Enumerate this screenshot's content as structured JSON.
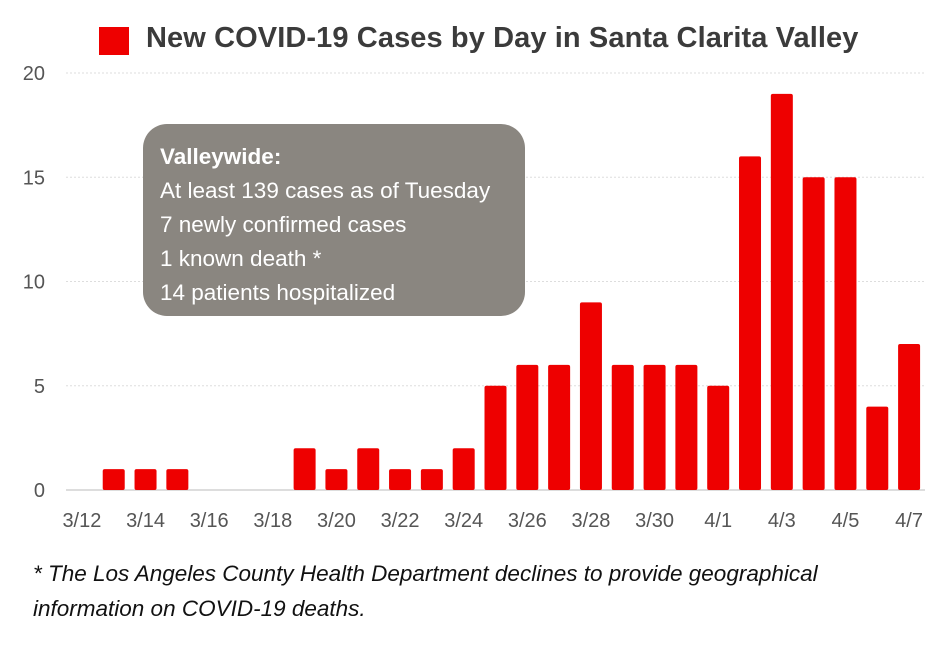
{
  "chart_data": {
    "type": "bar",
    "legend": [
      "New COVID-19 Cases by Day in Santa Clarita Valley"
    ],
    "categories": [
      "3/12",
      "3/13",
      "3/14",
      "3/15",
      "3/16",
      "3/17",
      "3/18",
      "3/19",
      "3/20",
      "3/21",
      "3/22",
      "3/23",
      "3/24",
      "3/25",
      "3/26",
      "3/27",
      "3/28",
      "3/29",
      "3/30",
      "3/31",
      "4/1",
      "4/2",
      "4/3",
      "4/4",
      "4/5",
      "4/6",
      "4/7"
    ],
    "tick_labels": [
      "3/12",
      "3/14",
      "3/16",
      "3/18",
      "3/20",
      "3/22",
      "3/24",
      "3/26",
      "3/28",
      "3/30",
      "4/1",
      "4/3",
      "4/5",
      "4/7"
    ],
    "values": [
      0,
      1,
      1,
      1,
      0,
      0,
      0,
      2,
      1,
      2,
      1,
      1,
      2,
      5,
      6,
      6,
      9,
      6,
      6,
      6,
      5,
      16,
      19,
      15,
      15,
      4,
      7
    ],
    "ylim": [
      0,
      20
    ],
    "yticks": [
      0,
      5,
      10,
      15,
      20
    ],
    "grid": true,
    "legend_position": "top"
  },
  "colors": {
    "bar": "#ee0000",
    "grid": "#dddddd",
    "infobox": "#8a8680"
  },
  "infobox": {
    "heading": "Valleywide:",
    "lines": [
      "At least 139 cases as of Tuesday",
      "7 newly confirmed cases",
      "1 known death *",
      "14 patients hospitalized"
    ]
  },
  "footnote": {
    "line1": "* The Los Angeles County Health Department declines to provide geographical",
    "line2": "information on COVID-19 deaths."
  }
}
